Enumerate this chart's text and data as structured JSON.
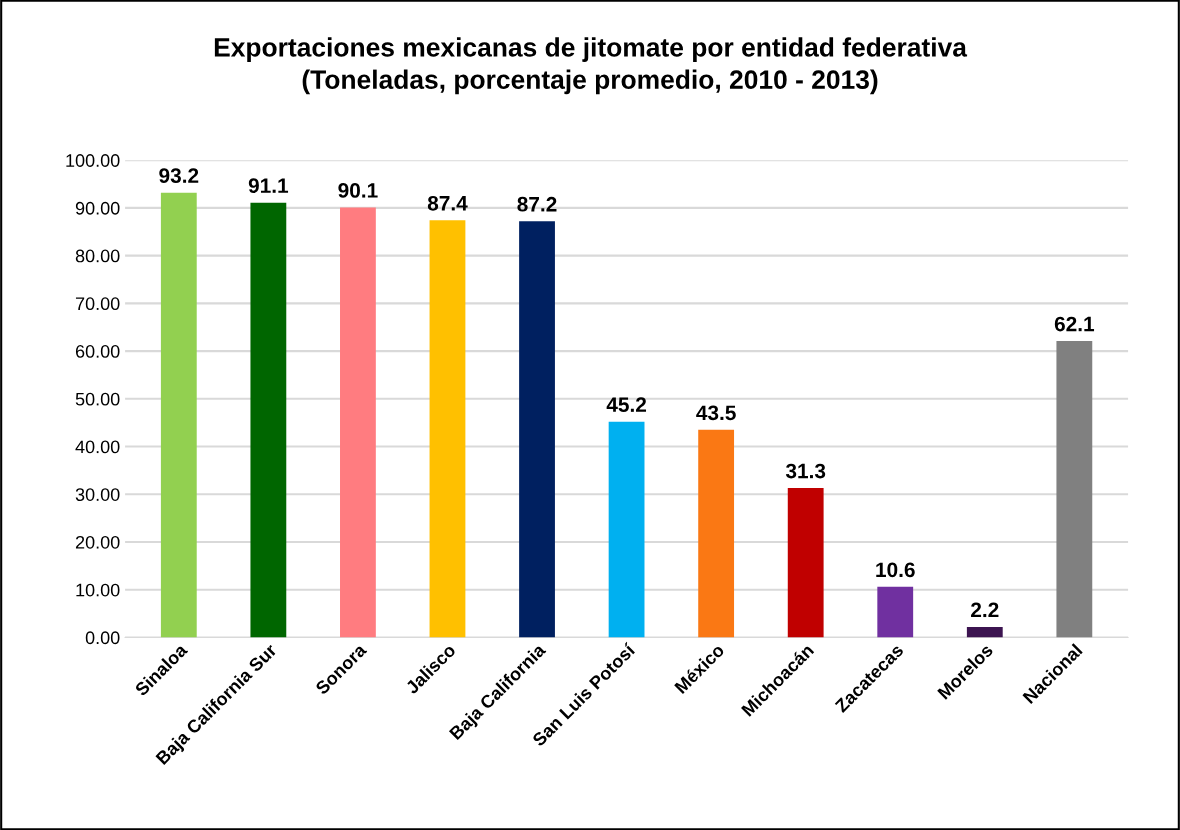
{
  "chart_data": {
    "type": "bar",
    "title": "Exportaciones mexicanas de jitomate por entidad federativa\n(Toneladas, porcentaje promedio, 2010 - 2013)",
    "categories": [
      "Sinaloa",
      "Baja California Sur",
      "Sonora",
      "Jalisco",
      "Baja California",
      "San Luis Potosí",
      "México",
      "Michoacán",
      "Zacatecas",
      "Morelos",
      "Nacional"
    ],
    "values": [
      93.2,
      91.1,
      90.1,
      87.4,
      87.2,
      45.2,
      43.5,
      31.3,
      10.6,
      2.2,
      62.1
    ],
    "colors": [
      "#92d050",
      "#006600",
      "#ff7c80",
      "#ffc000",
      "#002060",
      "#00b0f0",
      "#fa7814",
      "#c00000",
      "#7030a0",
      "#3c1450",
      "#808080"
    ],
    "ylim": [
      0,
      100
    ],
    "yticks": [
      {
        "value": 0,
        "label": "0.00"
      },
      {
        "value": 10,
        "label": "10.00"
      },
      {
        "value": 20,
        "label": "20.00"
      },
      {
        "value": 30,
        "label": "30.00"
      },
      {
        "value": 40,
        "label": "40.00"
      },
      {
        "value": 50,
        "label": "50.00"
      },
      {
        "value": 60,
        "label": "60.00"
      },
      {
        "value": 70,
        "label": "70.00"
      },
      {
        "value": 80,
        "label": "80.00"
      },
      {
        "value": 90,
        "label": "90.00"
      },
      {
        "value": 100,
        "label": "100.00"
      }
    ],
    "grid": "y",
    "data_labels": true
  }
}
